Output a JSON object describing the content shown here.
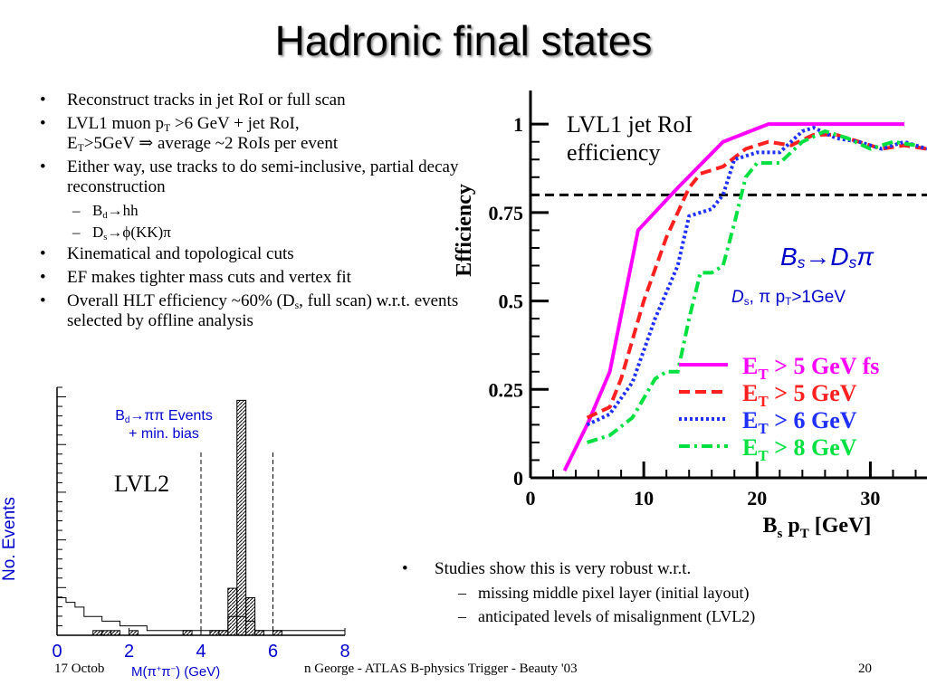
{
  "slide": {
    "title": "Hadronic final states",
    "page_number": "20",
    "footer_left": "17 Octob",
    "footer_center": "n George - ATLAS B-physics Trigger - Beauty '03"
  },
  "bullets": {
    "b1": "Reconstruct tracks in jet RoI or full scan",
    "b2_l1_pre": "LVL1 muon p",
    "b2_l1_sub": "T",
    "b2_l1_post": " >6 GeV +  jet RoI,",
    "b2_l2_pre": "E",
    "b2_l2_sub": "T",
    "b2_l2_post": ">5GeV ⇒ average ~2 RoIs per event",
    "b3": "Either way, use tracks to do semi-inclusive, partial decay reconstruction",
    "s1_pre": "B",
    "s1_sub": "d",
    "s1_post": "→hh",
    "s2_pre": "D",
    "s2_sub": "s",
    "s2_post": "→ϕ(KK)π",
    "b4": "Kinematical and topological cuts",
    "b5": "EF makes tighter mass cuts and vertex fit",
    "b6_pre": "Overall HLT efficiency ~60% (D",
    "b6_sub": "s",
    "b6_post": ", full scan) w.r.t. events selected by offline analysis",
    "r1": "Studies show this is very robust w.r.t.",
    "r1_s1": "missing middle pixel layer (initial layout)",
    "r1_s2": "anticipated levels of misalignment (LVL2)"
  },
  "efficiency_overlay": {
    "title": "LVL1 jet RoI efficiency",
    "channel_a": "B",
    "channel_a_sub": "s",
    "channel_arrow": "→",
    "channel_b": "D",
    "channel_b_sub": "s",
    "channel_c": "π",
    "cuts_a": "D",
    "cuts_a_sub": "s",
    "cuts_b": ",  π  p",
    "cuts_b_sub": "T",
    "cuts_c": ">1GeV"
  },
  "hist_overlay": {
    "legend_a": "B",
    "legend_a_sub": "d",
    "legend_b": "→ππ Events",
    "legend_c": "+ min. bias",
    "level": "LVL2",
    "ylabel": "No. Events",
    "xlabel_a": "M(π",
    "xlabel_sup1": "+",
    "xlabel_b": "π",
    "xlabel_sup2": "−",
    "xlabel_c": ") (GeV)"
  },
  "chart_data": [
    {
      "type": "line",
      "ylabel": "Efficiency",
      "xlabel": "B_s p_T [GeV]",
      "xlim": [
        0,
        35
      ],
      "ylim": [
        0,
        1.05
      ],
      "xticks": [
        0,
        10,
        20,
        30
      ],
      "yticks": [
        0,
        0.25,
        0.5,
        0.75,
        1
      ],
      "reference_line_y": 0.8,
      "colors": {
        "fs": "#ff00ff",
        "et5": "#ff2020",
        "et6": "#2030ff",
        "et8": "#00e040"
      },
      "series": [
        {
          "name": "E_T > 5 GeV fs",
          "key": "fs",
          "dash": "solid",
          "x": [
            3,
            5,
            7,
            9.5,
            13,
            17,
            21,
            25,
            29,
            33
          ],
          "y": [
            0.02,
            0.15,
            0.3,
            0.7,
            0.82,
            0.95,
            1.0,
            1.0,
            1.0,
            1.0
          ]
        },
        {
          "name": "E_T > 5 GeV",
          "key": "et5",
          "dash": "dash",
          "x": [
            5,
            7,
            8,
            10,
            12,
            14,
            15,
            17,
            19,
            21,
            23,
            25,
            27,
            29,
            31,
            33,
            35
          ],
          "y": [
            0.17,
            0.2,
            0.28,
            0.5,
            0.68,
            0.82,
            0.86,
            0.88,
            0.93,
            0.95,
            0.94,
            0.97,
            0.97,
            0.95,
            0.93,
            0.94,
            0.93
          ]
        },
        {
          "name": "E_T > 6 GeV",
          "key": "et6",
          "dash": "dot",
          "x": [
            5,
            7,
            9,
            11,
            13,
            14,
            16,
            17,
            18,
            20,
            22,
            24,
            25,
            27,
            29,
            31,
            33,
            35
          ],
          "y": [
            0.15,
            0.18,
            0.27,
            0.45,
            0.6,
            0.74,
            0.76,
            0.8,
            0.9,
            0.92,
            0.92,
            0.98,
            0.99,
            0.96,
            0.95,
            0.93,
            0.95,
            0.93
          ]
        },
        {
          "name": "E_T > 8 GeV",
          "key": "et8",
          "dash": "dashdot",
          "x": [
            5,
            7,
            9,
            11,
            12,
            13,
            14,
            15,
            16,
            17,
            18,
            19,
            20,
            22,
            24,
            26,
            28,
            30,
            32,
            34
          ],
          "y": [
            0.1,
            0.12,
            0.17,
            0.28,
            0.3,
            0.3,
            0.45,
            0.58,
            0.58,
            0.6,
            0.72,
            0.85,
            0.89,
            0.89,
            0.95,
            0.98,
            0.96,
            0.93,
            0.95,
            0.94
          ]
        }
      ]
    },
    {
      "type": "bar",
      "title": "",
      "xlabel": "M(π+π−) (GeV)",
      "ylabel": "No. Events",
      "xlim": [
        0,
        8
      ],
      "xticks": [
        0,
        2,
        4,
        6,
        8
      ],
      "cut_lines_x": [
        4.0,
        6.0
      ],
      "bin_width": 0.25,
      "bins_x": [
        0,
        0.25,
        0.5,
        0.75,
        1.0,
        1.25,
        1.5,
        1.75,
        2.0,
        2.25,
        2.5,
        2.75,
        3.0,
        3.25,
        3.5,
        3.75,
        4.0,
        4.25,
        4.5,
        4.75,
        5.0,
        5.25,
        5.5,
        5.75,
        6.0,
        6.25,
        6.5,
        6.75,
        7.0,
        7.25,
        7.5,
        7.75
      ],
      "background_counts": [
        8,
        7,
        6,
        4,
        4,
        3,
        3,
        2,
        2,
        2,
        1,
        1,
        1,
        1,
        1,
        1,
        1,
        1,
        1,
        4,
        4,
        3,
        1,
        1,
        1,
        1,
        1,
        1,
        1,
        1,
        1,
        1
      ],
      "signal_counts": [
        0,
        0,
        0,
        0,
        1,
        1,
        1,
        0,
        1,
        0,
        0,
        0,
        0,
        0,
        1,
        0,
        0,
        1,
        1,
        10,
        50,
        8,
        1,
        0,
        1,
        0,
        0,
        0,
        0,
        0,
        0,
        0
      ],
      "ymax": 52
    }
  ]
}
